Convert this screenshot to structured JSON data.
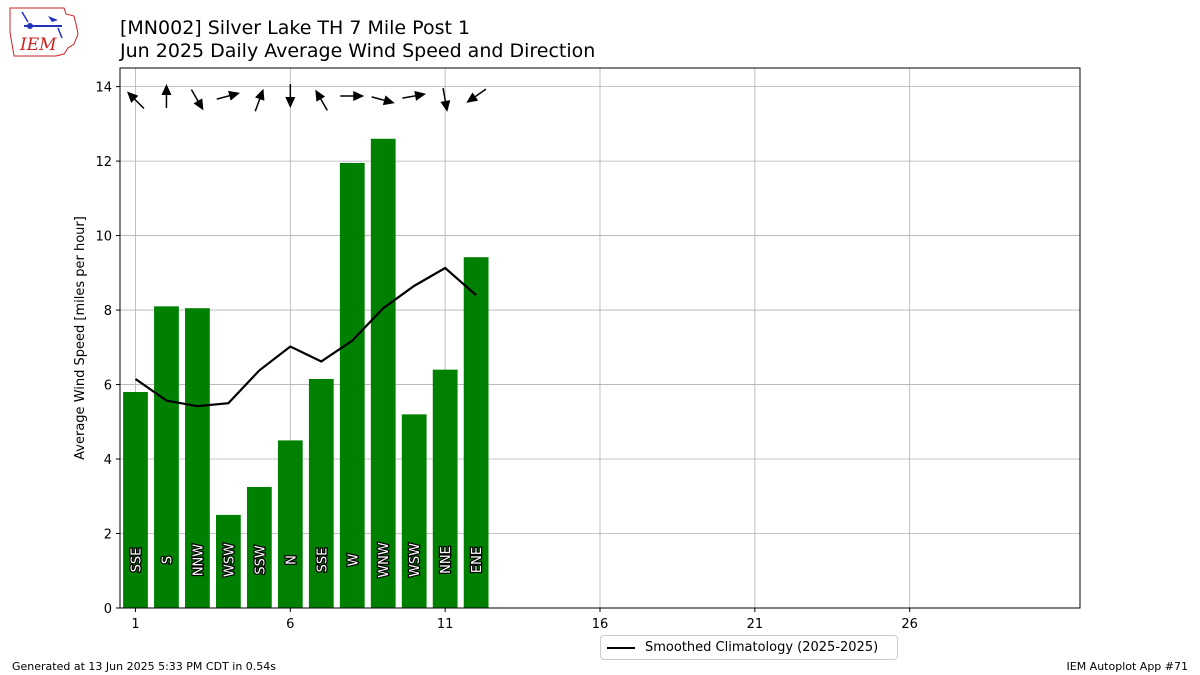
{
  "header": {
    "title_line1": "[MN002] Silver Lake TH 7 Mile Post 1",
    "title_line2": "Jun 2025 Daily Average Wind Speed and Direction"
  },
  "logo": {
    "text": "IEM"
  },
  "footer": {
    "left": "Generated at 13 Jun 2025 5:33 PM CDT in 0.54s",
    "right": "IEM Autoplot App #71"
  },
  "colors": {
    "bars": "#008000",
    "line": "#000000",
    "grid": "#b0b0b0",
    "logo_red": "#cc2222",
    "logo_blue": "#2233bb"
  },
  "chart_data": {
    "type": "bar",
    "ylabel": "Average Wind Speed [miles per hour]",
    "xlim": [
      0.5,
      31.5
    ],
    "ylim": [
      0,
      14.5
    ],
    "xticks": [
      1,
      6,
      11,
      16,
      21,
      26
    ],
    "yticks": [
      0,
      2,
      4,
      6,
      8,
      10,
      12,
      14
    ],
    "grid": true,
    "legend_position": "bottom-center",
    "days": [
      1,
      2,
      3,
      4,
      5,
      6,
      7,
      8,
      9,
      10,
      11,
      12
    ],
    "series": [
      {
        "kind": "bar",
        "values": [
          5.8,
          8.1,
          8.05,
          2.5,
          3.25,
          4.5,
          6.15,
          11.95,
          12.6,
          5.2,
          6.4,
          9.42
        ]
      },
      {
        "kind": "line",
        "name": "Smoothed Climatology (2025-2025)",
        "values": [
          6.15,
          5.57,
          5.42,
          5.5,
          6.38,
          7.02,
          6.62,
          7.18,
          8.05,
          8.65,
          9.13,
          8.4
        ]
      }
    ],
    "directions": [
      "SSE",
      "S",
      "NNW",
      "WSW",
      "SSW",
      "N",
      "SSE",
      "W",
      "WNW",
      "WSW",
      "NNE",
      "ENE"
    ],
    "arrow_bearings_deg": [
      315,
      0,
      150,
      75,
      20,
      180,
      330,
      90,
      105,
      80,
      170,
      235
    ]
  }
}
